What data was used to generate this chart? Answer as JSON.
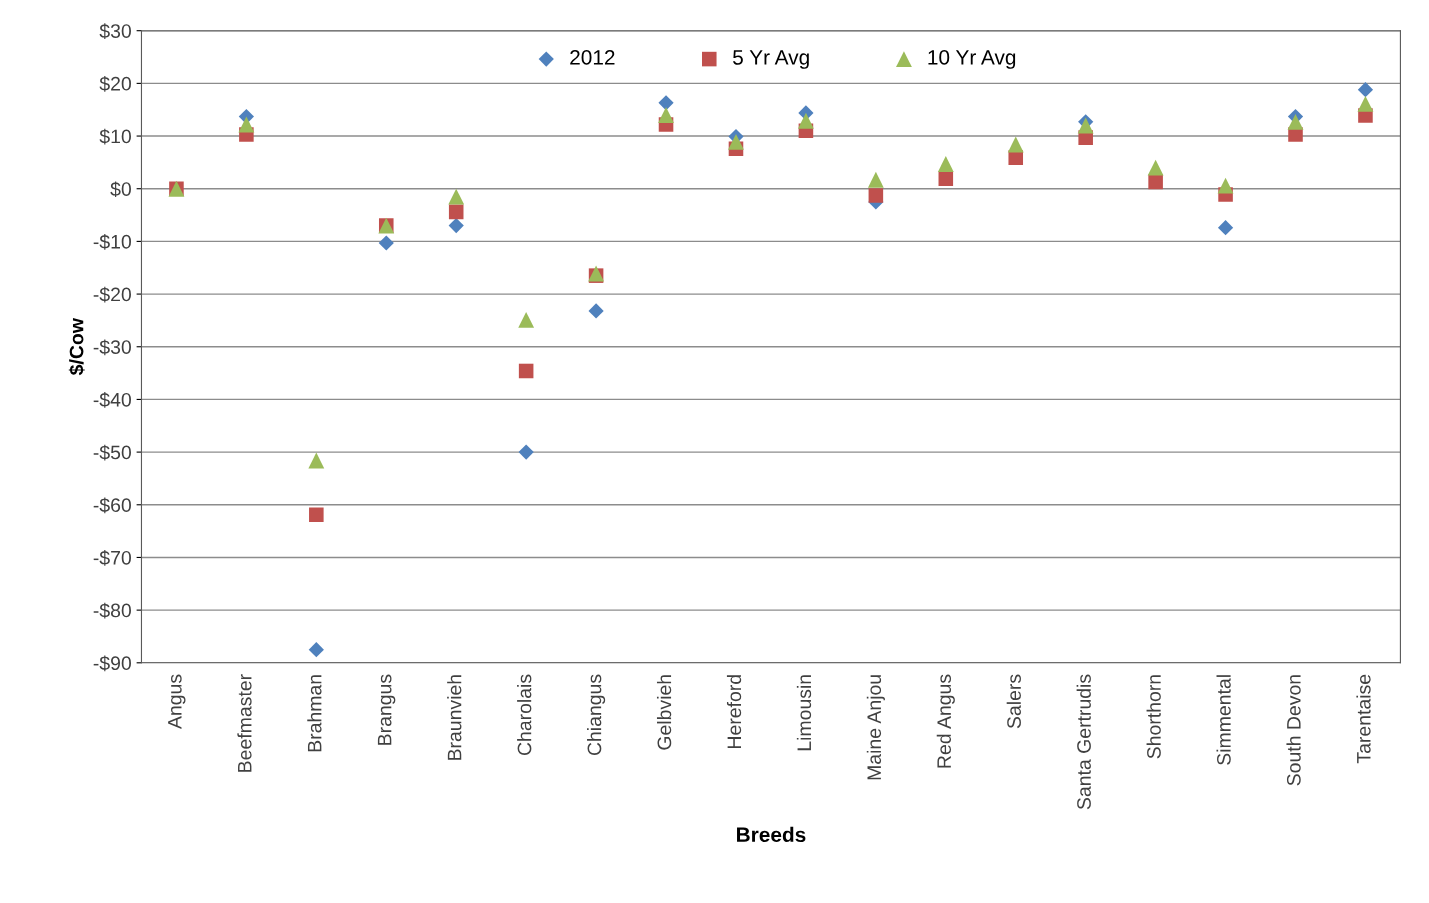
{
  "chart_data": {
    "type": "scatter",
    "xlabel": "Breeds",
    "ylabel": "$/Cow",
    "categories": [
      "Angus",
      "Beefmaster",
      "Brahman",
      "Brangus",
      "Braunvieh",
      "Charolais",
      "Chiangus",
      "Gelbvieh",
      "Hereford",
      "Limousin",
      "Maine Anjou",
      "Red Angus",
      "Salers",
      "Santa Gertrudis",
      "Shorthorn",
      "Simmental",
      "South Devon",
      "Tarentaise"
    ],
    "series": [
      {
        "name": "2012",
        "color": "#4f81bd",
        "marker": "diamond",
        "values": [
          null,
          13.7,
          -87.5,
          -10.3,
          -7,
          -50,
          -23.2,
          16.3,
          9.9,
          14.4,
          -2.5,
          null,
          null,
          12.7,
          null,
          -7.4,
          13.7,
          18.8
        ]
      },
      {
        "name": "5 Yr Avg",
        "color": "#c0504d",
        "marker": "square",
        "values": [
          0,
          10.3,
          -61.9,
          -7,
          -4.4,
          -34.6,
          -16.5,
          12.2,
          7.6,
          11,
          -1.3,
          1.9,
          5.9,
          9.7,
          1.3,
          -1.1,
          10.3,
          13.9
        ]
      },
      {
        "name": "10 Yr Avg",
        "color": "#9bbb59",
        "marker": "triangle",
        "values": [
          0,
          12.2,
          -51.6,
          -7,
          -1.5,
          -24.9,
          -16.1,
          14,
          8.9,
          12.9,
          1.7,
          4.7,
          8.4,
          12,
          4,
          0.6,
          12.7,
          16.1
        ]
      }
    ],
    "ylim": [
      -90,
      30
    ],
    "yticks": [
      {
        "value": -90,
        "label": "-$90"
      },
      {
        "value": -80,
        "label": "-$80"
      },
      {
        "value": -70,
        "label": "-$70"
      },
      {
        "value": -60,
        "label": "-$60"
      },
      {
        "value": -50,
        "label": "-$50"
      },
      {
        "value": -40,
        "label": "-$40"
      },
      {
        "value": -30,
        "label": "-$30"
      },
      {
        "value": -20,
        "label": "-$20"
      },
      {
        "value": -10,
        "label": "-$10"
      },
      {
        "value": 0,
        "label": "$0"
      },
      {
        "value": 10,
        "label": "$10"
      },
      {
        "value": 20,
        "label": "$20"
      },
      {
        "value": 30,
        "label": "$30"
      }
    ],
    "grid": "y",
    "legend": "top"
  }
}
